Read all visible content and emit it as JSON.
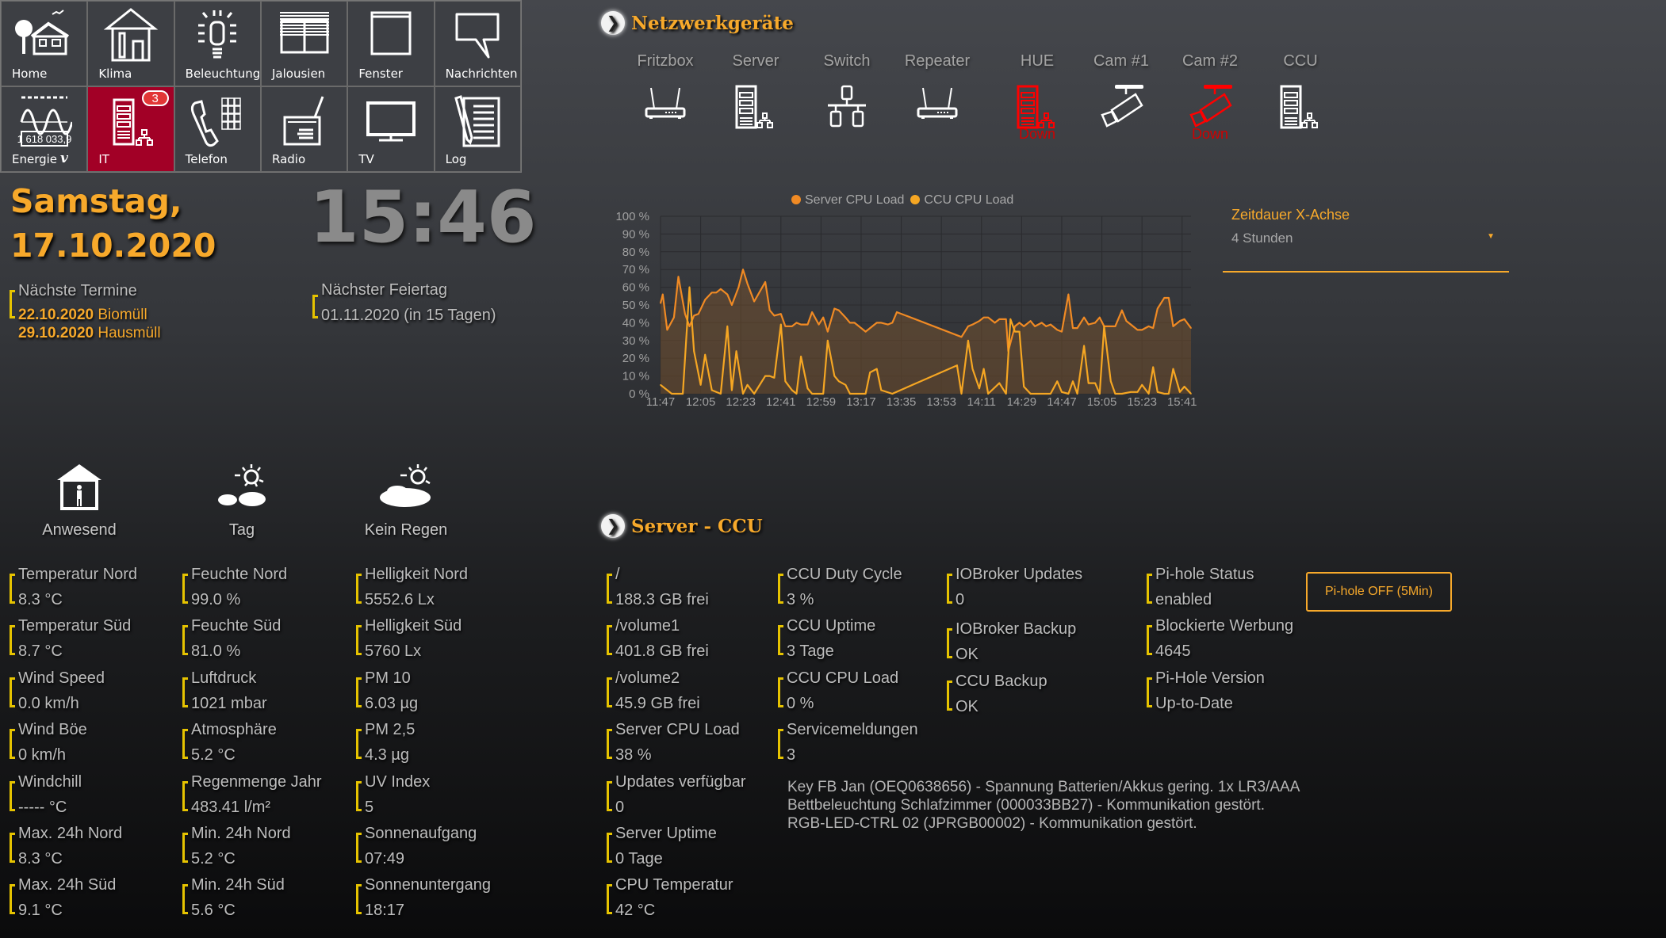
{
  "nav": {
    "tiles": [
      {
        "label": "Home",
        "icon": "home-garden-icon"
      },
      {
        "label": "Klima",
        "icon": "house-thermometer-icon"
      },
      {
        "label": "Beleuchtung",
        "icon": "light-bulb-icon"
      },
      {
        "label": "Jalousien",
        "icon": "blinds-icon"
      },
      {
        "label": "Fenster",
        "icon": "window-icon"
      },
      {
        "label": "Nachrichten",
        "icon": "speech-bubble-icon"
      },
      {
        "label": "Energie",
        "icon": "energy-meter-icon",
        "extra": "v"
      },
      {
        "label": "IT",
        "icon": "server-network-icon",
        "badge": "3",
        "active": true
      },
      {
        "label": "Telefon",
        "icon": "telephone-keypad-icon"
      },
      {
        "label": "Radio",
        "icon": "radio-icon"
      },
      {
        "label": "TV",
        "icon": "tv-icon"
      },
      {
        "label": "Log",
        "icon": "log-notepad-icon"
      }
    ]
  },
  "datetime": {
    "weekday": "Samstag,",
    "date": "17.10.2020",
    "time": "15:46"
  },
  "termine": {
    "label": "Nächste Termine",
    "items": [
      {
        "date": "22.10.2020",
        "text": "Biomüll"
      },
      {
        "date": "29.10.2020",
        "text": "Hausmüll"
      }
    ]
  },
  "feiertag": {
    "label": "Nächster Feiertag",
    "value": "01.11.2020 (in 15 Tagen)"
  },
  "status": [
    {
      "label": "Anwesend",
      "icon": "house-person-icon"
    },
    {
      "label": "Tag",
      "icon": "sun-clouds-icon"
    },
    {
      "label": "Kein Regen",
      "icon": "cloud-sun-icon"
    }
  ],
  "sensors": [
    [
      {
        "k": "Temperatur Nord",
        "v": "8.3 °C"
      },
      {
        "k": "Temperatur Süd",
        "v": "8.7 °C"
      },
      {
        "k": "Wind Speed",
        "v": "0.0 km/h"
      },
      {
        "k": "Wind Böe",
        "v": "0 km/h"
      },
      {
        "k": "Windchill",
        "v": "----- °C"
      },
      {
        "k": "Max. 24h Nord",
        "v": "8.3 °C"
      },
      {
        "k": "Max. 24h Süd",
        "v": "9.1 °C"
      }
    ],
    [
      {
        "k": "Feuchte Nord",
        "v": "99.0 %"
      },
      {
        "k": "Feuchte Süd",
        "v": "81.0 %"
      },
      {
        "k": "Luftdruck",
        "v": "1021 mbar"
      },
      {
        "k": "Atmosphäre",
        "v": "5.2 °C"
      },
      {
        "k": "Regenmenge Jahr",
        "v": "483.41 l/m²"
      },
      {
        "k": "Min. 24h Nord",
        "v": "5.2 °C"
      },
      {
        "k": "Min. 24h Süd",
        "v": "5.6 °C"
      }
    ],
    [
      {
        "k": "Helligkeit Nord",
        "v": "5552.6 Lx"
      },
      {
        "k": "Helligkeit Süd",
        "v": "5760 Lx"
      },
      {
        "k": "PM 10",
        "v": "6.03 µg"
      },
      {
        "k": "PM 2,5",
        "v": "4.3 µg"
      },
      {
        "k": "UV Index",
        "v": "5"
      },
      {
        "k": "Sonnenaufgang",
        "v": "07:49"
      },
      {
        "k": "Sonnenuntergang",
        "v": "18:17"
      }
    ]
  ],
  "network": {
    "title": "Netzwerkgeräte",
    "devices": [
      {
        "label": "Fritzbox",
        "icon": "router-icon",
        "status": "up"
      },
      {
        "label": "Server",
        "icon": "server-icon",
        "status": "up"
      },
      {
        "label": "Switch",
        "icon": "switch-icon",
        "status": "up"
      },
      {
        "label": "Repeater",
        "icon": "router-icon",
        "status": "up"
      },
      {
        "label": "HUE",
        "icon": "server-icon",
        "status": "down",
        "status_text": "Down"
      },
      {
        "label": "Cam #1",
        "icon": "camera-icon",
        "status": "up"
      },
      {
        "label": "Cam #2",
        "icon": "camera-icon",
        "status": "down",
        "status_text": "Down"
      },
      {
        "label": "CCU",
        "icon": "server-icon",
        "status": "up"
      }
    ]
  },
  "chart_data": {
    "type": "line",
    "legend_position": "top",
    "grid": true,
    "ylim": [
      0,
      100
    ],
    "y_ticks": [
      "0 %",
      "10 %",
      "20 %",
      "30 %",
      "40 %",
      "50 %",
      "60 %",
      "70 %",
      "80 %",
      "90 %",
      "100 %"
    ],
    "x_ticks": [
      "11:47",
      "12:05",
      "12:23",
      "12:41",
      "12:59",
      "13:17",
      "13:35",
      "13:53",
      "14:11",
      "14:29",
      "14:47",
      "15:05",
      "15:23",
      "15:41"
    ],
    "xlim": [
      "11:47",
      "15:45"
    ],
    "series": [
      {
        "name": "Server CPU Load",
        "color": "#f08a24",
        "filled": true,
        "points": [
          [
            "11:47",
            51
          ],
          [
            "11:48",
            56
          ],
          [
            "11:50",
            36
          ],
          [
            "11:53",
            43
          ],
          [
            "11:55",
            66
          ],
          [
            "11:58",
            45
          ],
          [
            "12:00",
            38
          ],
          [
            "12:02",
            44
          ],
          [
            "12:04",
            45
          ],
          [
            "12:07",
            53
          ],
          [
            "12:10",
            57
          ],
          [
            "12:12",
            57
          ],
          [
            "12:14",
            59
          ],
          [
            "12:17",
            56
          ],
          [
            "12:19",
            50
          ],
          [
            "12:22",
            60
          ],
          [
            "12:24",
            70
          ],
          [
            "12:26",
            62
          ],
          [
            "12:29",
            52
          ],
          [
            "12:34",
            63
          ],
          [
            "12:36",
            47
          ],
          [
            "12:38",
            44
          ],
          [
            "12:41",
            45
          ],
          [
            "12:43",
            38
          ],
          [
            "12:46",
            38
          ],
          [
            "12:48",
            40
          ],
          [
            "12:50",
            39
          ],
          [
            "12:53",
            39
          ],
          [
            "12:55",
            46
          ],
          [
            "12:58",
            39
          ],
          [
            "13:00",
            43
          ],
          [
            "13:02",
            35
          ],
          [
            "13:05",
            48
          ],
          [
            "13:07",
            47
          ],
          [
            "13:10",
            43
          ],
          [
            "13:12",
            40
          ],
          [
            "13:14",
            40
          ],
          [
            "13:19",
            35
          ],
          [
            "13:24",
            40
          ],
          [
            "13:26",
            40
          ],
          [
            "13:29",
            39
          ],
          [
            "13:31",
            40
          ],
          [
            "13:33",
            46
          ],
          [
            "14:02",
            32
          ],
          [
            "14:05",
            38
          ],
          [
            "14:07",
            39
          ],
          [
            "14:10",
            41
          ],
          [
            "14:12",
            43
          ],
          [
            "14:14",
            43
          ],
          [
            "14:17",
            40
          ],
          [
            "14:19",
            42
          ],
          [
            "14:22",
            42
          ],
          [
            "14:23",
            24
          ],
          [
            "14:26",
            38
          ],
          [
            "14:28",
            40
          ],
          [
            "14:30",
            38
          ],
          [
            "14:33",
            41
          ],
          [
            "14:35",
            38
          ],
          [
            "14:38",
            40
          ],
          [
            "14:40",
            38
          ],
          [
            "14:42",
            39
          ],
          [
            "14:45",
            36
          ],
          [
            "14:47",
            35
          ],
          [
            "14:50",
            56
          ],
          [
            "14:52",
            37
          ],
          [
            "14:54",
            37
          ],
          [
            "14:57",
            43
          ],
          [
            "14:59",
            39
          ],
          [
            "15:02",
            40
          ],
          [
            "15:04",
            43
          ],
          [
            "15:06",
            38
          ],
          [
            "15:11",
            38
          ],
          [
            "15:14",
            47
          ],
          [
            "15:16",
            41
          ],
          [
            "15:18",
            39
          ],
          [
            "15:21",
            36
          ],
          [
            "15:23",
            36
          ],
          [
            "15:26",
            38
          ],
          [
            "15:28",
            37
          ],
          [
            "15:30",
            48
          ],
          [
            "15:33",
            54
          ],
          [
            "15:35",
            54
          ],
          [
            "15:37",
            38
          ],
          [
            "15:40",
            41
          ],
          [
            "15:42",
            42
          ],
          [
            "15:45",
            37
          ]
        ]
      },
      {
        "name": "CCU CPU Load",
        "color": "#f5a623",
        "filled": false,
        "points": [
          [
            "11:47",
            5
          ],
          [
            "11:52",
            0
          ],
          [
            "11:57",
            0
          ],
          [
            "12:00",
            60
          ],
          [
            "12:02",
            24
          ],
          [
            "12:05",
            5
          ],
          [
            "12:07",
            22
          ],
          [
            "12:10",
            2
          ],
          [
            "12:14",
            0
          ],
          [
            "12:17",
            38
          ],
          [
            "12:19",
            2
          ],
          [
            "12:21",
            24
          ],
          [
            "12:24",
            0
          ],
          [
            "12:26",
            5
          ],
          [
            "12:29",
            0
          ],
          [
            "12:34",
            10
          ],
          [
            "12:36",
            10
          ],
          [
            "12:38",
            9
          ],
          [
            "12:41",
            39
          ],
          [
            "12:43",
            7
          ],
          [
            "12:46",
            2
          ],
          [
            "12:48",
            0
          ],
          [
            "12:50",
            21
          ],
          [
            "12:53",
            3
          ],
          [
            "12:55",
            0
          ],
          [
            "13:00",
            0
          ],
          [
            "13:02",
            30
          ],
          [
            "13:05",
            10
          ],
          [
            "13:07",
            7
          ],
          [
            "13:10",
            5
          ],
          [
            "13:12",
            0
          ],
          [
            "13:19",
            0
          ],
          [
            "13:21",
            12
          ],
          [
            "13:24",
            14
          ],
          [
            "13:26",
            2
          ],
          [
            "13:31",
            0
          ],
          [
            "14:00",
            16
          ],
          [
            "14:02",
            0
          ],
          [
            "14:05",
            30
          ],
          [
            "14:07",
            14
          ],
          [
            "14:10",
            3
          ],
          [
            "14:12",
            14
          ],
          [
            "14:14",
            0
          ],
          [
            "14:19",
            6
          ],
          [
            "14:22",
            0
          ],
          [
            "14:24",
            42
          ],
          [
            "14:26",
            35
          ],
          [
            "14:28",
            35
          ],
          [
            "14:30",
            4
          ],
          [
            "14:33",
            0
          ],
          [
            "14:42",
            0
          ],
          [
            "14:45",
            7
          ],
          [
            "14:47",
            1
          ],
          [
            "14:50",
            0
          ],
          [
            "14:52",
            7
          ],
          [
            "14:54",
            0
          ],
          [
            "14:57",
            27
          ],
          [
            "14:59",
            6
          ],
          [
            "15:02",
            6
          ],
          [
            "15:04",
            0
          ],
          [
            "15:06",
            38
          ],
          [
            "15:09",
            7
          ],
          [
            "15:11",
            0
          ],
          [
            "15:14",
            0
          ],
          [
            "15:18",
            1
          ],
          [
            "15:21",
            1
          ],
          [
            "15:23",
            5
          ],
          [
            "15:26",
            0
          ],
          [
            "15:28",
            15
          ],
          [
            "15:30",
            1
          ],
          [
            "15:33",
            0
          ],
          [
            "15:35",
            0
          ],
          [
            "15:37",
            14
          ],
          [
            "15:40",
            1
          ],
          [
            "15:42",
            4
          ],
          [
            "15:45",
            0
          ]
        ]
      }
    ]
  },
  "timerange": {
    "label": "Zeitdauer X-Achse",
    "value": "4 Stunden"
  },
  "server": {
    "title": "Server - CCU",
    "columns": [
      [
        {
          "k": "/",
          "v": "188.3 GB frei"
        },
        {
          "k": "/volume1",
          "v": "401.8 GB frei"
        },
        {
          "k": "/volume2",
          "v": "45.9 GB frei"
        },
        {
          "k": "Server CPU Load",
          "v": "38 %"
        },
        {
          "k": "Updates verfügbar",
          "v": "0"
        },
        {
          "k": "Server Uptime",
          "v": "0 Tage"
        },
        {
          "k": "CPU Temperatur",
          "v": "42 °C"
        }
      ],
      [
        {
          "k": "CCU Duty Cycle",
          "v": "3 %"
        },
        {
          "k": "CCU Uptime",
          "v": "3 Tage"
        },
        {
          "k": "CCU CPU Load",
          "v": "0 %"
        },
        {
          "k": "Servicemeldungen",
          "v": "3"
        }
      ],
      [
        {
          "k": "IOBroker Updates",
          "v": "0"
        },
        {
          "k": "IOBroker Backup",
          "v": "OK"
        },
        {
          "k": "CCU Backup",
          "v": "OK"
        }
      ],
      [
        {
          "k": "Pi-hole Status",
          "v": "enabled"
        },
        {
          "k": "Blockierte Werbung",
          "v": "4645"
        },
        {
          "k": "Pi-Hole Version",
          "v": "Up-to-Date"
        }
      ]
    ],
    "pihole_button": "Pi-hole OFF (5Min)",
    "messages": [
      "Key FB Jan (OEQ0638656) - Spannung Batterien/Akkus gering. 1x LR3/AAA",
      "Bettbeleuchtung Schlafzimmer (000033BB27) - Kommunikation gestört.",
      "RGB-LED-CTRL 02 (JPRGB00002) - Kommunikation gestört."
    ]
  }
}
